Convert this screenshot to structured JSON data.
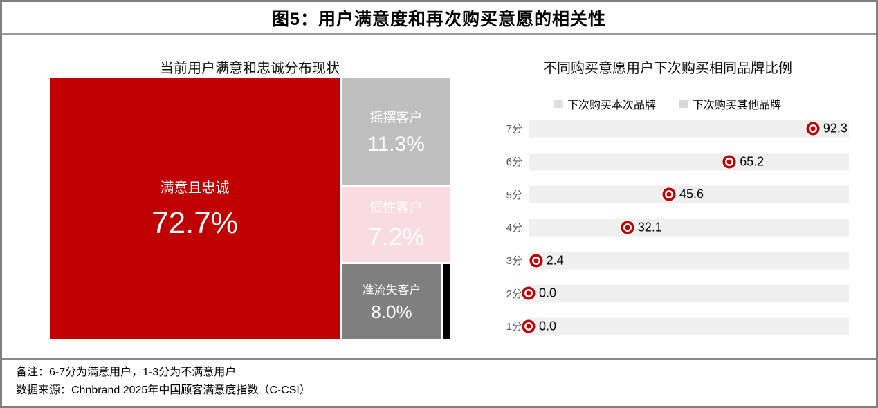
{
  "frame": {
    "title": "图5：用户满意度和再次购买意愿的相关性"
  },
  "left_chart": {
    "title": "当前用户满意和忠诚分布现状",
    "segments": {
      "loyal": {
        "label": "满意且忠诚",
        "value": "72.7%"
      },
      "swing": {
        "label": "摇摆客户",
        "value": "11.3%"
      },
      "inertia": {
        "label": "惯性客户",
        "value": "7.2%"
      },
      "churn": {
        "label": "准流失客户",
        "value": "8.0%"
      }
    }
  },
  "right_chart": {
    "title": "不同购买意愿用户下次购买相同品牌比例",
    "legend": [
      "下次购买本次品牌",
      "下次购买其他品牌"
    ],
    "axis_scale_max": 104,
    "rows": [
      {
        "label": "7分",
        "value": 92.3,
        "display": "92.3"
      },
      {
        "label": "6分",
        "value": 65.2,
        "display": "65.2"
      },
      {
        "label": "5分",
        "value": 45.6,
        "display": "45.6"
      },
      {
        "label": "4分",
        "value": 32.1,
        "display": "32.1"
      },
      {
        "label": "3分",
        "value": 2.4,
        "display": "2.4"
      },
      {
        "label": "2分",
        "value": 0.0,
        "display": "0.0"
      },
      {
        "label": "1分",
        "value": 0.0,
        "display": "0.0"
      }
    ]
  },
  "notes": {
    "note1": "备注：6-7分为满意用户，1-3分为不满意用户",
    "note2": "数据来源：Chnbrand 2025年中国顾客满意度指数（C-CSI）"
  },
  "colors": {
    "accent_red": "#c00000",
    "swing_gray": "#bfbfbf",
    "inertia_pink": "#f8dce2",
    "churn_gray": "#7f7f7f",
    "sliver_black": "#000000",
    "bar_background": "#efefef",
    "axis_gray": "#d9d9d9",
    "category_label_gray": "#595959",
    "frame_border_gray": "#7f7f7f"
  },
  "chart_data": [
    {
      "type": "treemap",
      "title": "当前用户满意和忠诚分布现状",
      "unit": "%",
      "segments": [
        {
          "label": "满意且忠诚",
          "value": 72.7,
          "color": "#c00000"
        },
        {
          "label": "摇摆客户",
          "value": 11.3,
          "color": "#bfbfbf"
        },
        {
          "label": "惯性客户",
          "value": 7.2,
          "color": "#f8dce2"
        },
        {
          "label": "准流失客户",
          "value": 8.0,
          "color": "#7f7f7f"
        },
        {
          "label": "",
          "color": "#000000"
        }
      ]
    },
    {
      "type": "bar",
      "orientation": "horizontal",
      "title": "不同购买意愿用户下次购买相同品牌比例",
      "legend": [
        "下次购买本次品牌",
        "下次购买其他品牌"
      ],
      "legend_position": "top",
      "categories": [
        "7分",
        "6分",
        "5分",
        "4分",
        "3分",
        "2分",
        "1分"
      ],
      "values": [
        92.3,
        65.2,
        45.6,
        32.1,
        2.4,
        0.0,
        0.0
      ],
      "xlim": [
        0,
        104
      ],
      "grid": false,
      "marker": "red-bullseye",
      "bar_background_color": "#efefef"
    }
  ]
}
